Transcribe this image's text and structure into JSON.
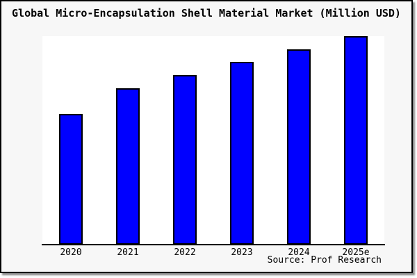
{
  "chart_data": {
    "type": "bar",
    "title": "Global Micro-Encapsulation Shell Material Market (Million USD)",
    "categories": [
      "2020",
      "2021",
      "2022",
      "2023",
      "2024",
      "2025e"
    ],
    "values": [
      62.7,
      75.0,
      81.3,
      87.7,
      93.7,
      100.0
    ],
    "xlabel": "",
    "ylabel": "",
    "ylim": [
      0,
      100
    ],
    "grid": false,
    "legend": "none",
    "value_units": "relative index (no y-axis labels shown; 2025e bar reaches plot top = 100)"
  },
  "source": {
    "text": "Source: Prof Research"
  },
  "colors": {
    "bar_fill": "#0000ff",
    "bar_border": "#000000",
    "plot_background": "#ffffff",
    "canvas_background": "#f7f7f7",
    "frame_border": "#000000",
    "text": "#000000"
  }
}
